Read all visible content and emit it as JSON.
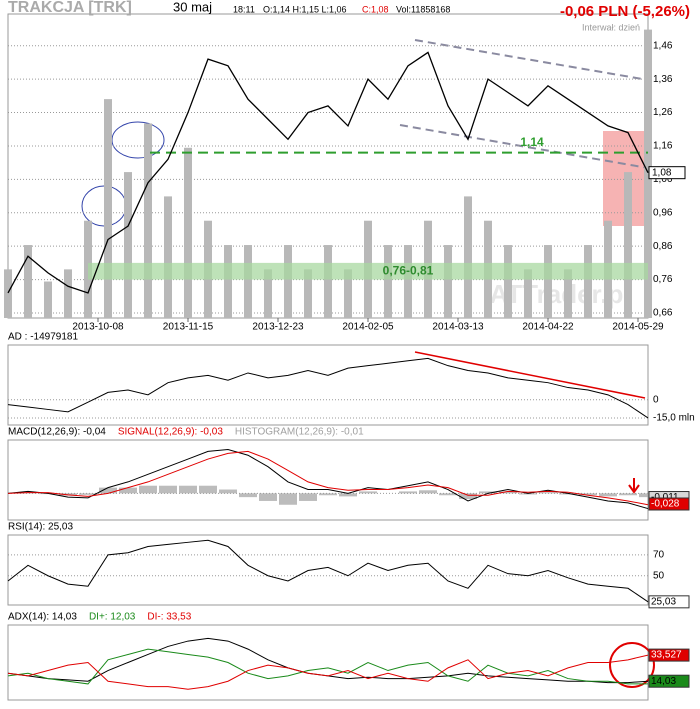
{
  "header": {
    "title": "TRAKCJA [TRK]",
    "date": "30 maj",
    "time": "18:11",
    "ohlc": "O:1,14 H:1,15 L:1,06",
    "close": "C:1,08",
    "volume": "Vol:11858168",
    "change": "-0,06 PLN (-5,26%)",
    "interval": "Interwał: dzień",
    "watermark": "ATTrader.pl"
  },
  "chart_data": [
    {
      "type": "line",
      "color": "#000000",
      "xlim": [
        0,
        64
      ],
      "x": [
        0,
        2,
        4,
        6,
        8,
        10,
        12,
        14,
        16,
        18,
        20,
        22,
        24,
        26,
        28,
        30,
        32,
        34,
        36,
        38,
        40,
        42,
        44,
        46,
        48,
        50,
        52,
        54,
        56,
        58,
        60,
        62,
        64
      ],
      "values": [
        0.72,
        0.83,
        0.78,
        0.74,
        0.72,
        0.88,
        0.92,
        1.05,
        1.12,
        1.26,
        1.42,
        1.4,
        1.3,
        1.24,
        1.18,
        1.26,
        1.28,
        1.22,
        1.36,
        1.3,
        1.4,
        1.44,
        1.28,
        1.18,
        1.36,
        1.32,
        1.28,
        1.34,
        1.3,
        1.26,
        1.22,
        1.2,
        1.08
      ],
      "ylim": [
        0.645,
        1.555
      ],
      "yticks": [
        {
          "value": 0.66,
          "label": "0,66"
        },
        {
          "value": 0.76,
          "label": "0,76"
        },
        {
          "value": 0.86,
          "label": "0,86"
        },
        {
          "value": 0.96,
          "label": "0,96"
        },
        {
          "value": 1.06,
          "label": "1,06"
        },
        {
          "value": 1.16,
          "label": "1,16"
        },
        {
          "value": 1.26,
          "label": "1,26"
        },
        {
          "value": 1.36,
          "label": "1,36"
        },
        {
          "value": 1.46,
          "label": "1,46"
        }
      ],
      "xticks": [
        {
          "value": 9,
          "label": "2013-10-08"
        },
        {
          "value": 18,
          "label": "2013-11-15"
        },
        {
          "value": 27,
          "label": "2013-12-23"
        },
        {
          "value": 36,
          "label": "2014-02-05"
        },
        {
          "value": 45,
          "label": "2014-03-13"
        },
        {
          "value": 54,
          "label": "2014-04-22"
        },
        {
          "value": 63,
          "label": "2014-05-29"
        }
      ],
      "grid": true,
      "volume": {
        "color": "#b8b8b8",
        "y2lim": [
          0,
          12500000
        ],
        "values": [
          2000000,
          3000000,
          1500000,
          2000000,
          4000000,
          9000000,
          6000000,
          8000000,
          5000000,
          7000000,
          4000000,
          3000000,
          3000000,
          2000000,
          3000000,
          2000000,
          3000000,
          2000000,
          4000000,
          3000000,
          3000000,
          4000000,
          3000000,
          5000000,
          4000000,
          3000000,
          2000000,
          3000000,
          2000000,
          3000000,
          4000000,
          6000000,
          11858168
        ]
      },
      "level": {
        "value": 1.14,
        "label": "1,14",
        "color": "#2e9e2e"
      },
      "band": {
        "from": 0.76,
        "to": 0.81,
        "label": "0,76-0,81",
        "color": "#a8d8a0"
      },
      "last": {
        "value": 1.08,
        "label": "1,08"
      }
    },
    {
      "type": "line",
      "ylim": [
        -20800000,
        45000000
      ],
      "yticks": [
        0,
        {
          "value": -15000000,
          "label": "-15,0 mln"
        }
      ],
      "series": [
        {
          "name": "AD : -14979181",
          "color": "#000000",
          "values": [
            -4000000,
            -6000000,
            -8000000,
            -10000000,
            -2000000,
            6000000,
            8000000,
            4000000,
            14000000,
            18000000,
            20000000,
            16000000,
            22000000,
            18000000,
            20000000,
            24000000,
            20000000,
            26000000,
            28000000,
            30000000,
            32000000,
            34000000,
            28000000,
            24000000,
            22000000,
            18000000,
            16000000,
            14000000,
            10000000,
            8000000,
            4000000,
            -4000000,
            -14979181
          ]
        }
      ]
    },
    {
      "type": "line",
      "ylim": [
        -0.07,
        0.14
      ],
      "yticks": [
        {
          "value": 0,
          "label": ""
        }
      ],
      "series": [
        {
          "name": "MACD(12,26,9): -0,04",
          "color": "#000000",
          "values": [
            0,
            0.005,
            0,
            -0.01,
            -0.012,
            0.015,
            0.03,
            0.05,
            0.07,
            0.09,
            0.11,
            0.115,
            0.1,
            0.07,
            0.03,
            0.01,
            0.01,
            0,
            0.015,
            0.01,
            0.02,
            0.03,
            0.01,
            -0.02,
            0,
            0.01,
            0,
            0.008,
            0,
            -0.01,
            -0.02,
            -0.025,
            -0.04
          ]
        },
        {
          "name": "SIGNAL(12,26,9): -0,03",
          "color": "#e00000",
          "values": [
            0,
            0.002,
            0.002,
            -0.004,
            -0.008,
            0,
            0.015,
            0.03,
            0.05,
            0.07,
            0.09,
            0.105,
            0.11,
            0.09,
            0.06,
            0.03,
            0.015,
            0.008,
            0.01,
            0.01,
            0.015,
            0.022,
            0.015,
            -0.005,
            -0.005,
            0.005,
            0.003,
            0.005,
            0.003,
            -0.005,
            -0.012,
            -0.02,
            -0.03
          ]
        },
        {
          "name": "HISTOGRAM(12,26,9): -0,01",
          "color": "#a0a0a0",
          "type": "bar",
          "values": [
            0,
            0.003,
            -0.002,
            -0.006,
            -0.004,
            0.015,
            0.015,
            0.02,
            0.02,
            0.02,
            0.02,
            0.01,
            -0.01,
            -0.02,
            -0.03,
            -0.02,
            -0.005,
            -0.008,
            0.005,
            0,
            0.005,
            0.008,
            -0.005,
            -0.015,
            0.005,
            0.005,
            -0.003,
            0.003,
            -0.003,
            -0.005,
            -0.008,
            -0.005,
            -0.01
          ]
        }
      ],
      "end_labels": [
        {
          "value": -0.011,
          "label": "-0,011",
          "color": "#d8d8d8"
        },
        {
          "value": -0.028,
          "label": "-0,028",
          "color": "#e00000"
        }
      ]
    },
    {
      "type": "line",
      "ylim": [
        22,
        89
      ],
      "yticks": [
        70,
        50
      ],
      "series": [
        {
          "name": "RSI(14): 25,03",
          "color": "#000000",
          "values": [
            45,
            60,
            50,
            42,
            40,
            70,
            72,
            78,
            80,
            82,
            84,
            78,
            60,
            50,
            45,
            55,
            58,
            50,
            62,
            55,
            60,
            62,
            45,
            38,
            60,
            52,
            50,
            55,
            48,
            42,
            40,
            38,
            25.03
          ]
        }
      ],
      "end_labels": [
        {
          "value": 25.03,
          "label": "25,03",
          "color": "#ffffff"
        }
      ]
    },
    {
      "type": "line",
      "ylim": [
        0,
        56
      ],
      "yticks": [],
      "series": [
        {
          "name": "ADX(14): 14,03",
          "color": "#000000",
          "values": [
            20,
            18,
            16,
            15,
            14,
            22,
            28,
            34,
            40,
            44,
            46,
            44,
            38,
            30,
            24,
            20,
            18,
            16,
            17,
            16,
            16,
            17,
            18,
            20,
            18,
            17,
            16,
            15,
            14,
            14,
            13,
            13,
            14.03
          ]
        },
        {
          "name": "DI+: 12,03",
          "color": "#1a8a1a",
          "values": [
            18,
            20,
            16,
            14,
            12,
            30,
            34,
            38,
            36,
            34,
            32,
            28,
            20,
            16,
            18,
            22,
            24,
            20,
            28,
            22,
            26,
            28,
            18,
            14,
            26,
            20,
            18,
            22,
            16,
            14,
            14,
            12,
            12.03
          ]
        },
        {
          "name": "DI-: 33,53",
          "color": "#e00000",
          "values": [
            20,
            18,
            22,
            26,
            28,
            14,
            12,
            10,
            10,
            8,
            10,
            14,
            22,
            26,
            24,
            20,
            18,
            22,
            16,
            20,
            16,
            14,
            24,
            30,
            16,
            20,
            22,
            18,
            24,
            28,
            28,
            30,
            33.53
          ]
        }
      ],
      "end_labels": [
        {
          "value": 33.527,
          "label": "33,527",
          "color": "#e00000"
        },
        {
          "value": 14.03,
          "label": "14,03",
          "color": "#1a8a1a"
        }
      ]
    }
  ]
}
